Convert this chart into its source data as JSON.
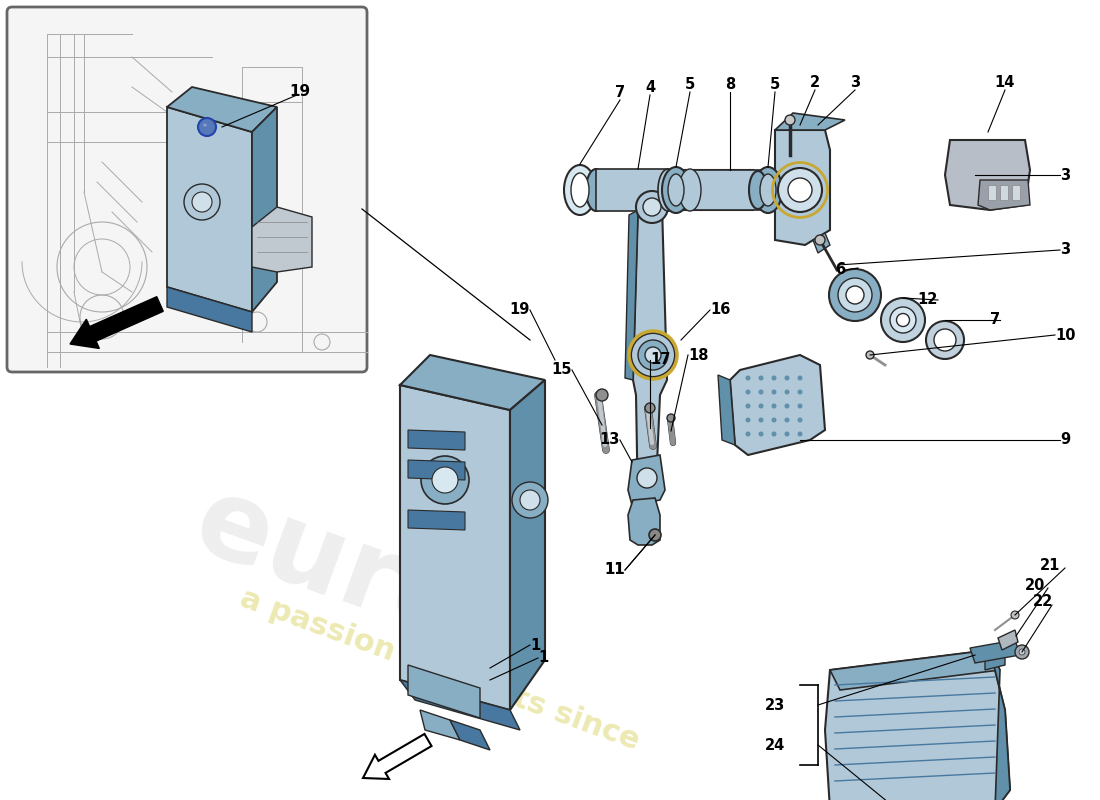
{
  "bg_color": "#ffffff",
  "part_color_light": "#b0c8d8",
  "part_color_medium": "#88aec4",
  "part_color_dark": "#6090aa",
  "part_color_shade": "#4878a0",
  "outline_color": "#2a2a2a",
  "line_color": "#333333",
  "watermark_color": "#e8e8e8",
  "watermark_sub_color": "#e8e4a0",
  "bolt_blue": "#5578b8",
  "yellow_ring": "#c8a830",
  "inset_bg": "#f5f5f5",
  "label_fs": 10.5,
  "part_nums_top": [
    "7",
    "4",
    "5",
    "8",
    "5",
    "2",
    "3",
    "14"
  ],
  "part_nums_right": [
    "3",
    "6",
    "7",
    "12",
    "10",
    "9"
  ],
  "part_nums_mid": [
    "19",
    "15",
    "17",
    "18",
    "16",
    "13",
    "11"
  ],
  "part_nums_bottom": [
    "1",
    "21",
    "20",
    "22",
    "23",
    "24"
  ]
}
